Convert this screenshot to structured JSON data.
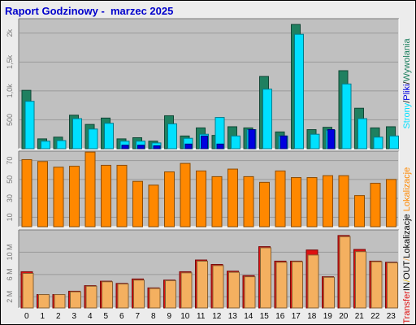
{
  "window": {
    "title": "Raport Godzinowy -  marzec 2025"
  },
  "colors": {
    "frame_bg": "#ececec",
    "plot_bg": "#c0c0c0",
    "grid": "#9a9a9a",
    "title": "#0000cc",
    "strony": "#1f8060",
    "pliki": "#00e0ff",
    "wywolania": "#0000e0",
    "lokalizacje": "#ff8800",
    "transfer": "#dd1111",
    "transfer_in": "#f4b060",
    "transfer_out": "#f4b060"
  },
  "chart_data": [
    {
      "type": "bar",
      "categories": [
        "0",
        "1",
        "2",
        "3",
        "4",
        "5",
        "6",
        "7",
        "8",
        "9",
        "10",
        "11",
        "12",
        "13",
        "14",
        "15",
        "16",
        "17",
        "18",
        "19",
        "20",
        "21",
        "22",
        "23"
      ],
      "ylim": [
        0,
        2250
      ],
      "yticks": [
        500,
        1000,
        1500,
        2000
      ],
      "yticklabels": [
        "500",
        "1,0k",
        "1,5k",
        "2k"
      ],
      "grid": true,
      "legend_text": [
        "Strony",
        "/",
        "Pliki",
        "/",
        "Wywolania"
      ],
      "series": [
        {
          "name": "Wywolania",
          "values": [
            1010,
            170,
            200,
            580,
            420,
            530,
            170,
            190,
            130,
            570,
            220,
            360,
            230,
            380,
            360,
            1250,
            290,
            2150,
            330,
            370,
            1350,
            700,
            360,
            380
          ]
        },
        {
          "name": "Pliki",
          "values": [
            820,
            130,
            140,
            520,
            340,
            440,
            130,
            130,
            100,
            430,
            180,
            250,
            540,
            220,
            330,
            1030,
            220,
            1980,
            250,
            320,
            1120,
            520,
            200,
            220
          ]
        },
        {
          "name": "Strony",
          "values": [
            0,
            0,
            0,
            0,
            0,
            0,
            60,
            60,
            50,
            0,
            80,
            220,
            80,
            0,
            330,
            0,
            220,
            0,
            0,
            330,
            0,
            0,
            0,
            0
          ]
        }
      ]
    },
    {
      "type": "bar",
      "categories": [
        "0",
        "1",
        "2",
        "3",
        "4",
        "5",
        "6",
        "7",
        "8",
        "9",
        "10",
        "11",
        "12",
        "13",
        "14",
        "15",
        "16",
        "17",
        "18",
        "19",
        "20",
        "21",
        "22",
        "23"
      ],
      "ylim": [
        0,
        80
      ],
      "yticks": [
        10,
        30,
        50,
        70
      ],
      "yticklabels": [
        "10",
        "30",
        "50",
        "70"
      ],
      "grid": true,
      "legend_text": [
        "Lokalizacje"
      ],
      "series": [
        {
          "name": "Lokalizacje",
          "values": [
            71,
            69,
            63,
            64,
            79,
            65,
            65,
            48,
            44,
            58,
            67,
            59,
            53,
            61,
            53,
            47,
            59,
            52,
            52,
            54,
            54,
            33,
            46,
            50
          ]
        }
      ]
    },
    {
      "type": "bar",
      "categories": [
        "0",
        "1",
        "2",
        "3",
        "4",
        "5",
        "6",
        "7",
        "8",
        "9",
        "10",
        "11",
        "12",
        "13",
        "14",
        "15",
        "16",
        "17",
        "18",
        "19",
        "20",
        "21",
        "22",
        "23"
      ],
      "ylim": [
        0,
        14
      ],
      "yticks": [
        2,
        6,
        10
      ],
      "yticklabels": [
        "2 M",
        "6 M",
        "10 M"
      ],
      "grid": true,
      "legend_text": [
        "Transfer",
        "IN",
        "/",
        "OUT",
        "/",
        "Lokalizacje"
      ],
      "series": [
        {
          "name": "Transfer",
          "values": [
            6.5,
            2.4,
            2.4,
            3.0,
            4.0,
            4.8,
            4.4,
            5.2,
            3.6,
            5.0,
            6.5,
            8.6,
            7.8,
            6.6,
            5.8,
            11.0,
            8.4,
            8.4,
            10.4,
            5.6,
            13.0,
            10.5,
            8.4,
            8.2
          ]
        },
        {
          "name": "IN",
          "values": [
            6.2,
            2.4,
            2.4,
            2.9,
            3.9,
            4.7,
            4.3,
            5.0,
            3.5,
            4.9,
            6.3,
            8.4,
            7.6,
            6.4,
            5.6,
            10.8,
            8.2,
            8.3,
            9.5,
            5.5,
            12.8,
            10.1,
            8.3,
            8.1
          ]
        }
      ]
    }
  ]
}
